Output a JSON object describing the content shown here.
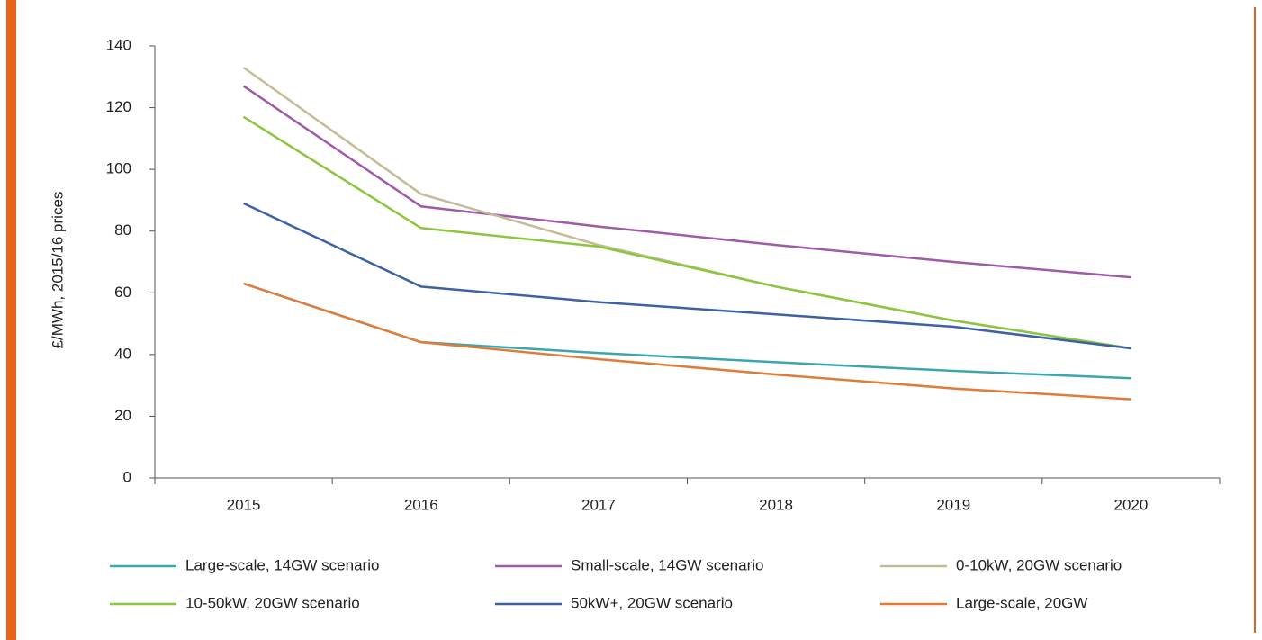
{
  "chart_data": {
    "type": "line",
    "y_label": "£/MWh, 2015/16 prices",
    "categories": [
      "2015",
      "2016",
      "2017",
      "2018",
      "2019",
      "2020"
    ],
    "series": [
      {
        "name": "Large-scale, 14GW scenario",
        "color": "#3aa6b0",
        "values": [
          63,
          44,
          40.5,
          37.5,
          34.7,
          32.3
        ]
      },
      {
        "name": "Small-scale, 14GW scenario",
        "color": "#a05aa8",
        "values": [
          127,
          88,
          81.5,
          75.5,
          70,
          65
        ]
      },
      {
        "name": "0-10kW, 20GW scenario",
        "color": "#c4bc98",
        "values": [
          133,
          92,
          75.5,
          62,
          51,
          42
        ]
      },
      {
        "name": "10-50kW, 20GW scenario",
        "color": "#8cc63f",
        "values": [
          117,
          81,
          75,
          62,
          51,
          42
        ]
      },
      {
        "name": "50kW+, 20GW scenario",
        "color": "#3c62a6",
        "values": [
          89,
          62,
          57,
          53,
          49,
          42
        ]
      },
      {
        "name": "Large-scale, 20GW",
        "color": "#e07b39",
        "values": [
          63,
          44,
          38.5,
          33.5,
          29,
          25.5
        ]
      }
    ],
    "ylim": [
      0,
      140
    ],
    "yticks": [
      0,
      20,
      40,
      60,
      80,
      100,
      120,
      140
    ],
    "grid": false
  }
}
